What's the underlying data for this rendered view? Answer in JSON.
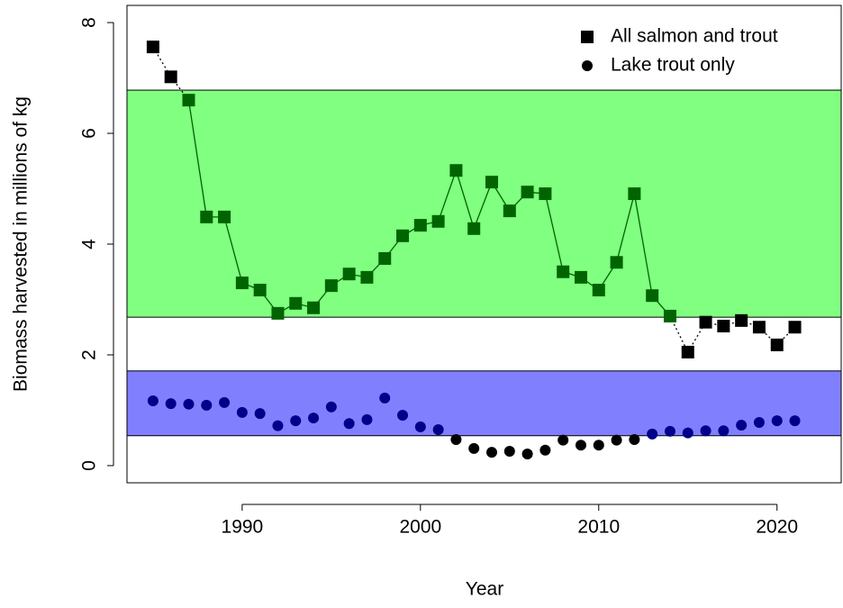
{
  "chart_data": {
    "type": "scatter",
    "x_label": "Year",
    "y_label": "Biomass harvested in millions of kg",
    "xlim": [
      1983.54,
      2023.6
    ],
    "ylim": [
      -0.31,
      8.31
    ],
    "xticks": [
      1990,
      2000,
      2010,
      2020
    ],
    "yticks": [
      0,
      2,
      4,
      6,
      8
    ],
    "legend": "top-right",
    "x": [
      1985,
      1986,
      1987,
      1988,
      1989,
      1990,
      1991,
      1992,
      1993,
      1994,
      1995,
      1996,
      1997,
      1998,
      1999,
      2000,
      2001,
      2002,
      2003,
      2004,
      2005,
      2006,
      2007,
      2008,
      2009,
      2010,
      2011,
      2012,
      2013,
      2014,
      2015,
      2016,
      2017,
      2018,
      2019,
      2020,
      2021
    ],
    "series": [
      {
        "name": "All salmon and trout",
        "color": "#000000",
        "marker": "square",
        "line": true,
        "band": {
          "range": [
            2.68,
            6.78
          ],
          "color": "#80ff80",
          "point_color": "#006400"
        },
        "values": [
          7.56,
          7.02,
          6.6,
          4.49,
          4.49,
          3.3,
          3.17,
          2.75,
          2.93,
          2.85,
          3.25,
          3.46,
          3.4,
          3.74,
          4.15,
          4.34,
          4.41,
          5.33,
          4.28,
          5.12,
          4.6,
          4.94,
          4.91,
          3.5,
          3.4,
          3.17,
          3.67,
          4.91,
          3.07,
          2.7,
          2.05,
          2.59,
          2.52,
          2.62,
          2.5,
          2.18,
          2.5
        ]
      },
      {
        "name": "Lake trout only",
        "color": "#000000",
        "marker": "circle",
        "line": false,
        "band": {
          "range": [
            0.54,
            1.71
          ],
          "color": "#8080ff",
          "point_color": "#00008b"
        },
        "values": [
          1.17,
          1.12,
          1.11,
          1.09,
          1.14,
          0.96,
          0.94,
          0.72,
          0.81,
          0.86,
          1.06,
          0.76,
          0.83,
          1.22,
          0.91,
          0.7,
          0.65,
          0.47,
          0.31,
          0.24,
          0.26,
          0.21,
          0.28,
          0.46,
          0.37,
          0.37,
          0.46,
          0.47,
          0.57,
          0.62,
          0.59,
          0.63,
          0.63,
          0.73,
          0.78,
          0.81,
          0.81
        ]
      }
    ]
  }
}
